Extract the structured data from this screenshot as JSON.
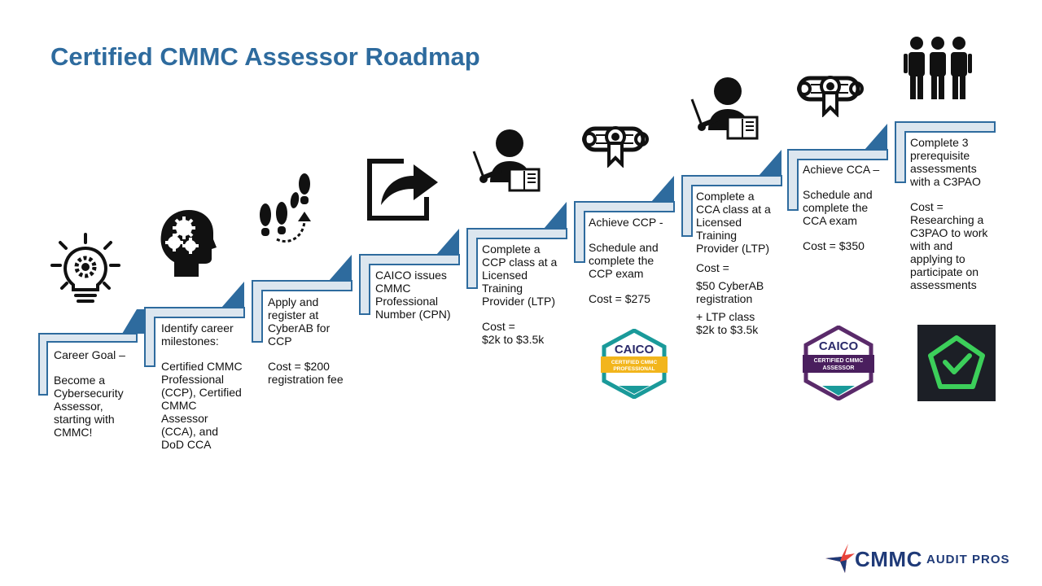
{
  "title": "Certified CMMC Assessor Roadmap",
  "colors": {
    "title": "#2e6b9e",
    "stair": "#2e6b9e",
    "stair_fill": "#dce6ef",
    "brand": "#1f3a78",
    "accent": "#e8433a"
  },
  "steps": [
    {
      "icon": "lightbulb-gear-icon",
      "paragraphs": [
        "Career Goal –",
        "Become a Cybersecurity Assessor, starting with CMMC!"
      ]
    },
    {
      "icon": "head-gears-icon",
      "paragraphs": [
        "Identify career milestones:",
        "Certified CMMC Professional (CCP), Certified CMMC Assessor (CCA), and DoD CCA"
      ]
    },
    {
      "icon": "footsteps-icon",
      "paragraphs": [
        "Apply and register at CyberAB for CCP",
        "Cost =  $200 registration fee"
      ]
    },
    {
      "icon": "share-arrow-icon",
      "paragraphs": [
        "CAICO issues CMMC Professional Number (CPN)"
      ]
    },
    {
      "icon": "teacher-icon",
      "paragraphs": [
        "Complete a CCP class at a Licensed Training Provider (LTP)",
        "Cost =\n$2k to $3.5k"
      ]
    },
    {
      "icon": "diploma-icon",
      "paragraphs": [
        "Achieve CCP -",
        "Schedule and complete the CCP exam",
        "Cost = $275"
      ]
    },
    {
      "icon": "teacher-icon",
      "paragraphs": [
        "Complete a CCA class at a Licensed Training Provider (LTP)",
        "Cost =",
        "$50 CyberAB registration",
        "+ LTP class\n$2k to $3.5k"
      ]
    },
    {
      "icon": "diploma-icon",
      "paragraphs": [
        "Achieve CCA –",
        "Schedule and complete the CCA exam",
        "Cost = $350"
      ]
    },
    {
      "icon": "people-group-icon",
      "paragraphs": [
        "Complete 3 prerequisite assessments with a C3PAO",
        "Cost = Researching a C3PAO to work with and applying to participate on assessments"
      ]
    }
  ],
  "badges": {
    "ccp": {
      "brand": "CAICO",
      "line1": "CERTIFIED CMMC",
      "line2": "PROFESSIONAL"
    },
    "cca": {
      "brand": "CAICO",
      "line1": "CERTIFIED CMMC",
      "line2": "ASSESSOR"
    },
    "c3pao": {
      "icon": "shield-check-icon"
    }
  },
  "logo": {
    "name": "CMMC",
    "tagline": "AUDIT PROS"
  }
}
